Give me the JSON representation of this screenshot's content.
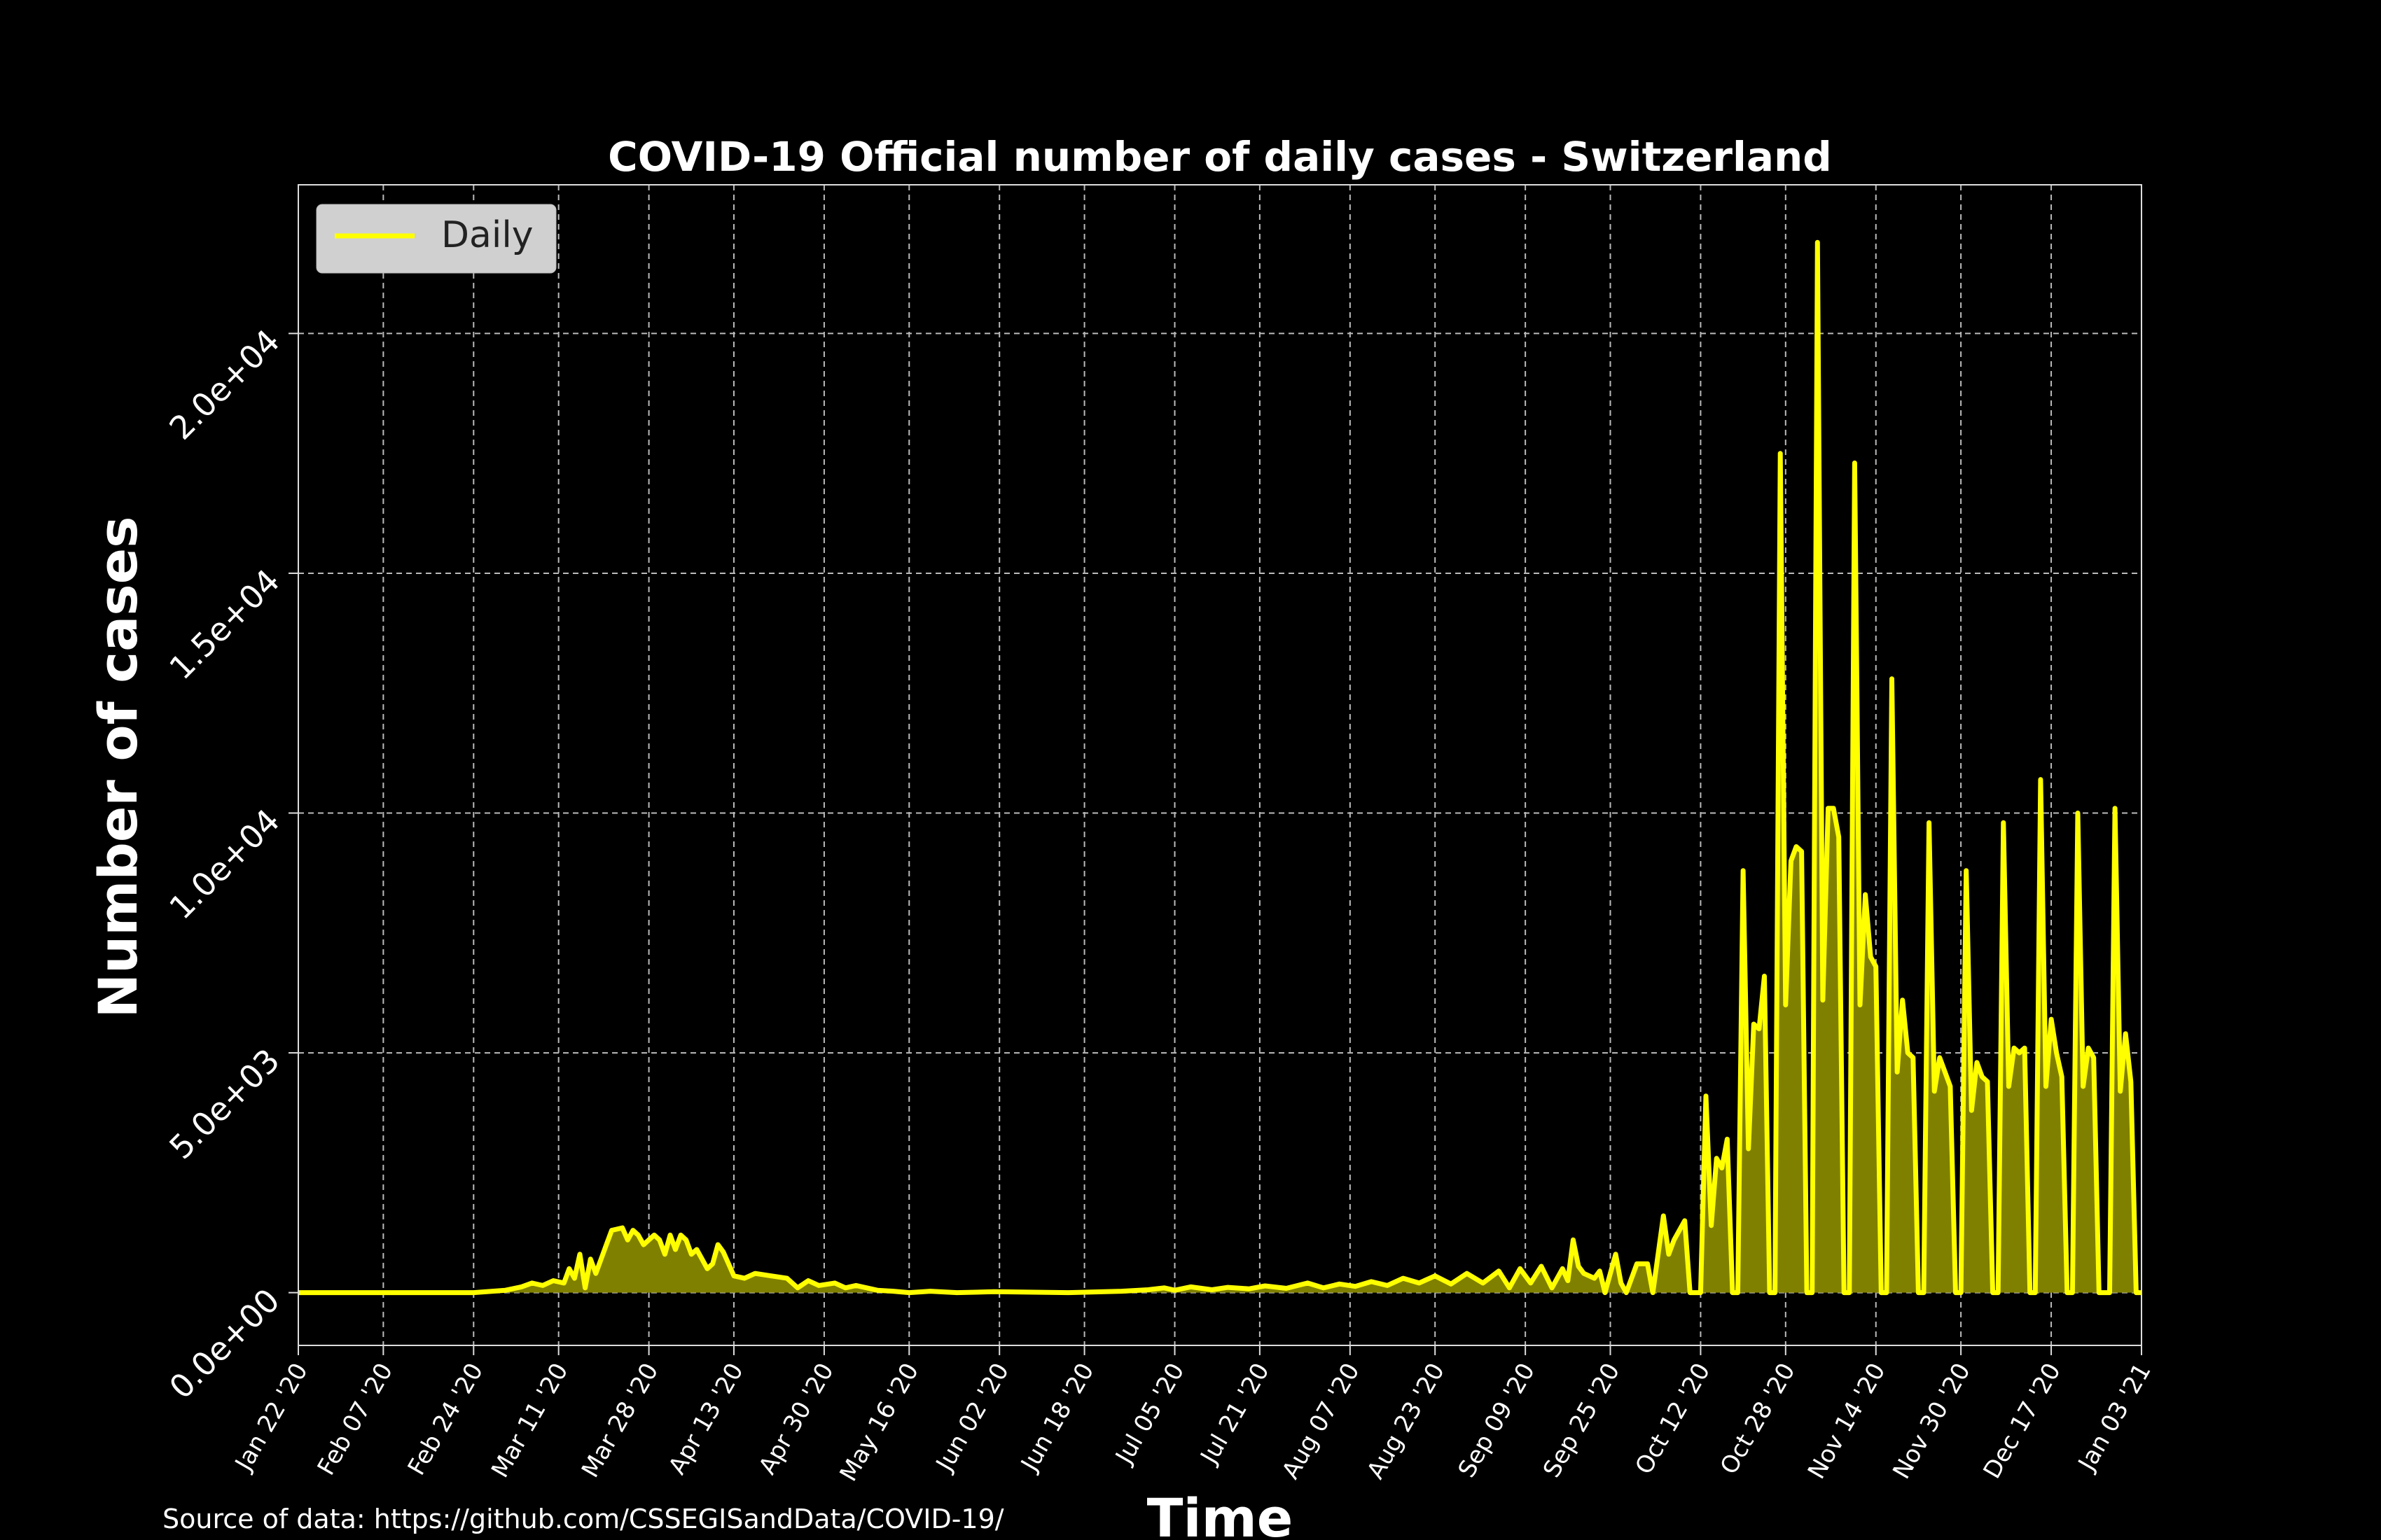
{
  "source_note": "Source of data: https://github.com/CSSEGISandData/COVID-19/",
  "colors": {
    "background": "#000000",
    "series": "#ffff00",
    "fill": "#808000",
    "grid": "#bbbbbb",
    "legend_bg": "#d0d0d0"
  },
  "chart_data": {
    "type": "area",
    "title": "COVID-19 Official number of daily cases - Switzerland",
    "xlabel": "Time",
    "ylabel": "Number of cases",
    "xlim": [
      "2020-01-22",
      "2021-01-03"
    ],
    "ylim": [
      -1100,
      23100
    ],
    "x_ticks": [
      "2020-01-22",
      "2020-02-07",
      "2020-02-24",
      "2020-03-11",
      "2020-03-28",
      "2020-04-13",
      "2020-04-30",
      "2020-05-16",
      "2020-06-02",
      "2020-06-18",
      "2020-07-05",
      "2020-07-21",
      "2020-08-07",
      "2020-08-23",
      "2020-09-09",
      "2020-09-25",
      "2020-10-12",
      "2020-10-28",
      "2020-11-14",
      "2020-11-30",
      "2020-12-17",
      "2021-01-03"
    ],
    "x_tick_labels": [
      "Jan 22 '20",
      "Feb 07 '20",
      "Feb 24 '20",
      "Mar 11 '20",
      "Mar 28 '20",
      "Apr 13 '20",
      "Apr 30 '20",
      "May 16 '20",
      "Jun 02 '20",
      "Jun 18 '20",
      "Jul 05 '20",
      "Jul 21 '20",
      "Aug 07 '20",
      "Aug 23 '20",
      "Sep 09 '20",
      "Sep 25 '20",
      "Oct 12 '20",
      "Oct 28 '20",
      "Nov 14 '20",
      "Nov 30 '20",
      "Dec 17 '20",
      "Jan 03 '21"
    ],
    "y_ticks": [
      0,
      5000,
      10000,
      15000,
      20000
    ],
    "y_tick_labels": [
      "0.0e+00",
      "5.0e+03",
      "1.0e+04",
      "1.5e+04",
      "2.0e+04"
    ],
    "grid": true,
    "legend": {
      "position": "top-left",
      "entries": [
        "Daily"
      ]
    },
    "series": [
      {
        "name": "Daily",
        "points": [
          [
            "2020-01-22",
            0
          ],
          [
            "2020-02-24",
            0
          ],
          [
            "2020-03-01",
            50
          ],
          [
            "2020-03-04",
            120
          ],
          [
            "2020-03-06",
            200
          ],
          [
            "2020-03-08",
            150
          ],
          [
            "2020-03-10",
            250
          ],
          [
            "2020-03-12",
            200
          ],
          [
            "2020-03-13",
            500
          ],
          [
            "2020-03-14",
            300
          ],
          [
            "2020-03-15",
            800
          ],
          [
            "2020-03-16",
            100
          ],
          [
            "2020-03-17",
            700
          ],
          [
            "2020-03-18",
            400
          ],
          [
            "2020-03-20",
            1000
          ],
          [
            "2020-03-21",
            1300
          ],
          [
            "2020-03-23",
            1350
          ],
          [
            "2020-03-24",
            1100
          ],
          [
            "2020-03-25",
            1300
          ],
          [
            "2020-03-26",
            1200
          ],
          [
            "2020-03-27",
            1000
          ],
          [
            "2020-03-29",
            1200
          ],
          [
            "2020-03-30",
            1100
          ],
          [
            "2020-03-31",
            800
          ],
          [
            "2020-04-01",
            1200
          ],
          [
            "2020-04-02",
            900
          ],
          [
            "2020-04-03",
            1200
          ],
          [
            "2020-04-04",
            1100
          ],
          [
            "2020-04-05",
            800
          ],
          [
            "2020-04-06",
            900
          ],
          [
            "2020-04-07",
            700
          ],
          [
            "2020-04-08",
            500
          ],
          [
            "2020-04-09",
            600
          ],
          [
            "2020-04-10",
            1000
          ],
          [
            "2020-04-11",
            850
          ],
          [
            "2020-04-12",
            600
          ],
          [
            "2020-04-13",
            350
          ],
          [
            "2020-04-15",
            300
          ],
          [
            "2020-04-17",
            400
          ],
          [
            "2020-04-20",
            350
          ],
          [
            "2020-04-23",
            300
          ],
          [
            "2020-04-25",
            100
          ],
          [
            "2020-04-27",
            250
          ],
          [
            "2020-04-29",
            150
          ],
          [
            "2020-05-02",
            200
          ],
          [
            "2020-05-04",
            100
          ],
          [
            "2020-05-06",
            150
          ],
          [
            "2020-05-10",
            50
          ],
          [
            "2020-05-13",
            30
          ],
          [
            "2020-05-16",
            0
          ],
          [
            "2020-05-20",
            30
          ],
          [
            "2020-05-25",
            0
          ],
          [
            "2020-06-01",
            20
          ],
          [
            "2020-06-15",
            0
          ],
          [
            "2020-06-25",
            30
          ],
          [
            "2020-06-30",
            60
          ],
          [
            "2020-07-03",
            100
          ],
          [
            "2020-07-05",
            50
          ],
          [
            "2020-07-08",
            120
          ],
          [
            "2020-07-12",
            60
          ],
          [
            "2020-07-15",
            110
          ],
          [
            "2020-07-19",
            80
          ],
          [
            "2020-07-22",
            140
          ],
          [
            "2020-07-26",
            90
          ],
          [
            "2020-07-30",
            200
          ],
          [
            "2020-08-02",
            100
          ],
          [
            "2020-08-05",
            180
          ],
          [
            "2020-08-08",
            130
          ],
          [
            "2020-08-11",
            230
          ],
          [
            "2020-08-14",
            150
          ],
          [
            "2020-08-17",
            300
          ],
          [
            "2020-08-20",
            200
          ],
          [
            "2020-08-23",
            350
          ],
          [
            "2020-08-26",
            180
          ],
          [
            "2020-08-29",
            400
          ],
          [
            "2020-09-01",
            200
          ],
          [
            "2020-09-04",
            450
          ],
          [
            "2020-09-06",
            100
          ],
          [
            "2020-09-08",
            500
          ],
          [
            "2020-09-10",
            200
          ],
          [
            "2020-09-12",
            550
          ],
          [
            "2020-09-14",
            100
          ],
          [
            "2020-09-16",
            500
          ],
          [
            "2020-09-17",
            250
          ],
          [
            "2020-09-18",
            1100
          ],
          [
            "2020-09-19",
            550
          ],
          [
            "2020-09-20",
            400
          ],
          [
            "2020-09-22",
            300
          ],
          [
            "2020-09-23",
            450
          ],
          [
            "2020-09-24",
            0
          ],
          [
            "2020-09-26",
            800
          ],
          [
            "2020-09-27",
            200
          ],
          [
            "2020-09-28",
            0
          ],
          [
            "2020-09-30",
            600
          ],
          [
            "2020-10-02",
            600
          ],
          [
            "2020-10-03",
            0
          ],
          [
            "2020-10-05",
            1600
          ],
          [
            "2020-10-06",
            800
          ],
          [
            "2020-10-07",
            1100
          ],
          [
            "2020-10-09",
            1500
          ],
          [
            "2020-10-10",
            0
          ],
          [
            "2020-10-12",
            0
          ],
          [
            "2020-10-13",
            4100
          ],
          [
            "2020-10-14",
            1400
          ],
          [
            "2020-10-15",
            2800
          ],
          [
            "2020-10-16",
            2600
          ],
          [
            "2020-10-17",
            3200
          ],
          [
            "2020-10-18",
            0
          ],
          [
            "2020-10-19",
            0
          ],
          [
            "2020-10-20",
            8800
          ],
          [
            "2020-10-21",
            3000
          ],
          [
            "2020-10-22",
            5600
          ],
          [
            "2020-10-23",
            5500
          ],
          [
            "2020-10-24",
            6600
          ],
          [
            "2020-10-25",
            0
          ],
          [
            "2020-10-26",
            0
          ],
          [
            "2020-10-27",
            17500
          ],
          [
            "2020-10-28",
            6000
          ],
          [
            "2020-10-29",
            9000
          ],
          [
            "2020-10-30",
            9300
          ],
          [
            "2020-10-31",
            9200
          ],
          [
            "2020-11-01",
            0
          ],
          [
            "2020-11-02",
            0
          ],
          [
            "2020-11-03",
            21900
          ],
          [
            "2020-11-04",
            6100
          ],
          [
            "2020-11-05",
            10100
          ],
          [
            "2020-11-06",
            10100
          ],
          [
            "2020-11-07",
            9500
          ],
          [
            "2020-11-08",
            0
          ],
          [
            "2020-11-09",
            0
          ],
          [
            "2020-11-10",
            17300
          ],
          [
            "2020-11-11",
            6000
          ],
          [
            "2020-11-12",
            8300
          ],
          [
            "2020-11-13",
            7000
          ],
          [
            "2020-11-14",
            6800
          ],
          [
            "2020-11-15",
            0
          ],
          [
            "2020-11-16",
            0
          ],
          [
            "2020-11-17",
            12800
          ],
          [
            "2020-11-18",
            4600
          ],
          [
            "2020-11-19",
            6100
          ],
          [
            "2020-11-20",
            5000
          ],
          [
            "2020-11-21",
            4900
          ],
          [
            "2020-11-22",
            0
          ],
          [
            "2020-11-23",
            0
          ],
          [
            "2020-11-24",
            9800
          ],
          [
            "2020-11-25",
            4200
          ],
          [
            "2020-11-26",
            4900
          ],
          [
            "2020-11-27",
            4600
          ],
          [
            "2020-11-28",
            4300
          ],
          [
            "2020-11-29",
            0
          ],
          [
            "2020-11-30",
            0
          ],
          [
            "2020-12-01",
            8800
          ],
          [
            "2020-12-02",
            3800
          ],
          [
            "2020-12-03",
            4800
          ],
          [
            "2020-12-04",
            4500
          ],
          [
            "2020-12-05",
            4400
          ],
          [
            "2020-12-06",
            0
          ],
          [
            "2020-12-07",
            0
          ],
          [
            "2020-12-08",
            9800
          ],
          [
            "2020-12-09",
            4300
          ],
          [
            "2020-12-10",
            5100
          ],
          [
            "2020-12-11",
            5000
          ],
          [
            "2020-12-12",
            5100
          ],
          [
            "2020-12-13",
            0
          ],
          [
            "2020-12-14",
            0
          ],
          [
            "2020-12-15",
            10700
          ],
          [
            "2020-12-16",
            4300
          ],
          [
            "2020-12-17",
            5700
          ],
          [
            "2020-12-18",
            5000
          ],
          [
            "2020-12-19",
            4500
          ],
          [
            "2020-12-20",
            0
          ],
          [
            "2020-12-21",
            0
          ],
          [
            "2020-12-22",
            10000
          ],
          [
            "2020-12-23",
            4300
          ],
          [
            "2020-12-24",
            5100
          ],
          [
            "2020-12-25",
            4900
          ],
          [
            "2020-12-26",
            0
          ],
          [
            "2020-12-28",
            0
          ],
          [
            "2020-12-29",
            10100
          ],
          [
            "2020-12-30",
            4200
          ],
          [
            "2020-12-31",
            5400
          ],
          [
            "2021-01-01",
            4400
          ],
          [
            "2021-01-02",
            0
          ],
          [
            "2021-01-03",
            0
          ]
        ]
      }
    ]
  }
}
